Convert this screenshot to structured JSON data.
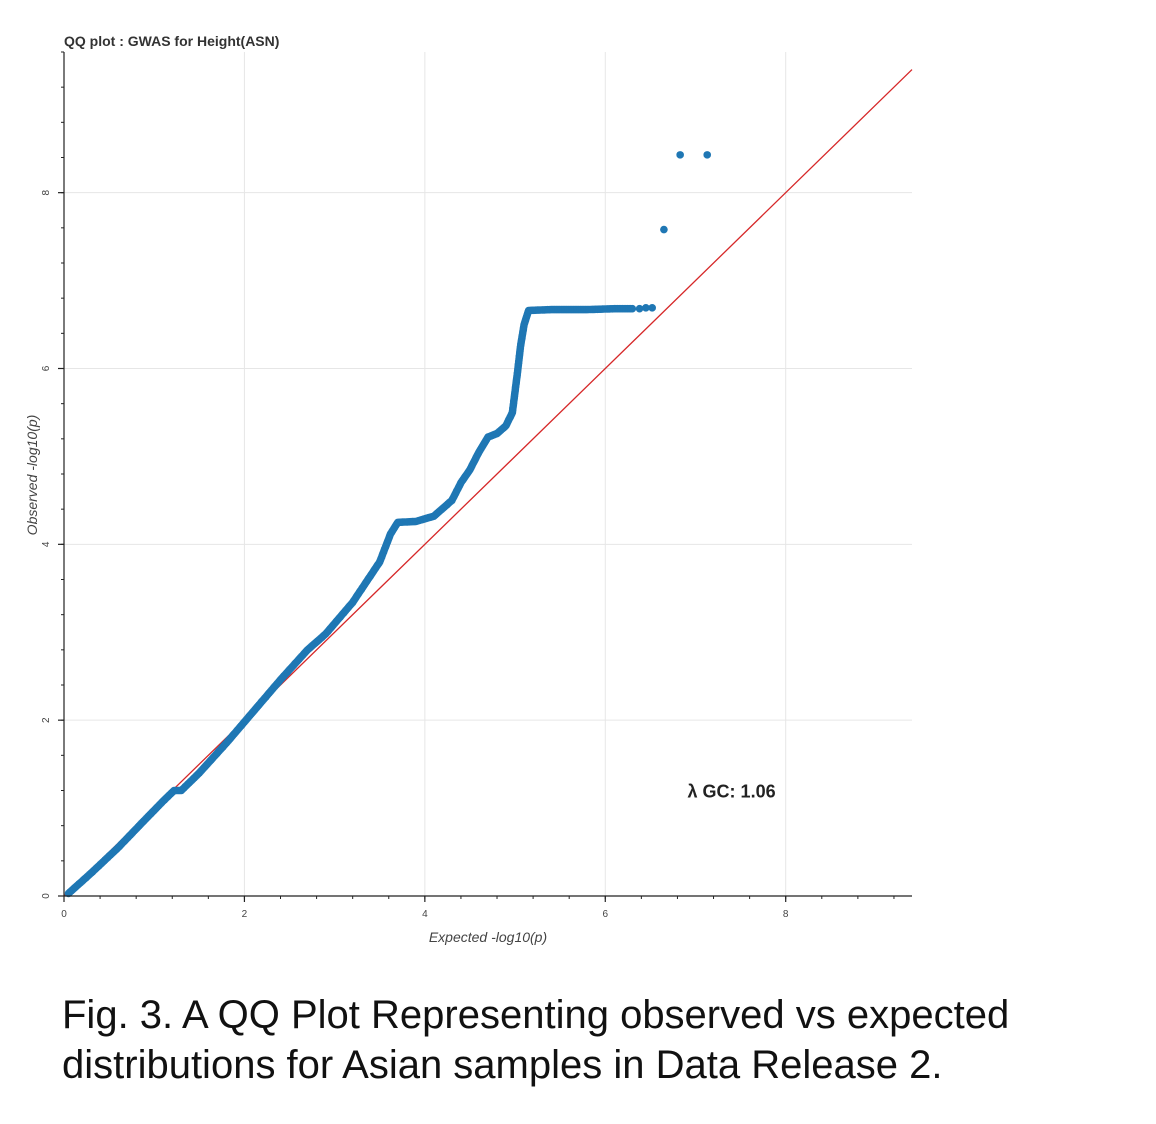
{
  "caption": "Fig. 3. A QQ Plot Representing observed vs expected distributions for Asian samples in Data Release 2.",
  "chart_data": {
    "type": "scatter",
    "title": "QQ plot : GWAS for Height(ASN)",
    "xlabel": "Expected -log10(p)",
    "ylabel": "Observed -log10(p)",
    "xlim": [
      0,
      9.4
    ],
    "ylim": [
      0,
      9.6
    ],
    "x_ticks": [
      0,
      2,
      4,
      6,
      8
    ],
    "y_ticks": [
      0,
      2,
      4,
      6,
      8
    ],
    "grid": true,
    "point_color": "#1f77b4",
    "reference_line": {
      "from": [
        0,
        0
      ],
      "to": [
        9.4,
        9.4
      ],
      "color": "#d62728"
    },
    "annotation": {
      "text": "λ GC: 1.06",
      "x": 7.4,
      "y": 1.12
    },
    "curve": [
      [
        0.05,
        0.03
      ],
      [
        0.3,
        0.26
      ],
      [
        0.6,
        0.55
      ],
      [
        0.9,
        0.87
      ],
      [
        1.1,
        1.08
      ],
      [
        1.22,
        1.2
      ],
      [
        1.3,
        1.2
      ],
      [
        1.5,
        1.4
      ],
      [
        1.8,
        1.74
      ],
      [
        2.1,
        2.1
      ],
      [
        2.4,
        2.46
      ],
      [
        2.7,
        2.8
      ],
      [
        2.9,
        2.98
      ],
      [
        3.2,
        3.34
      ],
      [
        3.5,
        3.8
      ],
      [
        3.62,
        4.12
      ],
      [
        3.7,
        4.25
      ],
      [
        3.9,
        4.26
      ],
      [
        4.1,
        4.32
      ],
      [
        4.3,
        4.5
      ],
      [
        4.4,
        4.7
      ],
      [
        4.5,
        4.85
      ],
      [
        4.6,
        5.05
      ],
      [
        4.7,
        5.22
      ],
      [
        4.8,
        5.26
      ],
      [
        4.9,
        5.35
      ],
      [
        4.97,
        5.5
      ],
      [
        5.02,
        5.9
      ],
      [
        5.06,
        6.25
      ],
      [
        5.1,
        6.5
      ],
      [
        5.15,
        6.66
      ],
      [
        5.4,
        6.67
      ],
      [
        5.8,
        6.67
      ],
      [
        6.1,
        6.68
      ],
      [
        6.3,
        6.68
      ]
    ],
    "points": [
      {
        "x": 6.38,
        "y": 6.68
      },
      {
        "x": 6.45,
        "y": 6.69
      },
      {
        "x": 6.52,
        "y": 6.69
      },
      {
        "x": 6.65,
        "y": 7.58
      },
      {
        "x": 6.83,
        "y": 8.43
      },
      {
        "x": 7.13,
        "y": 8.43
      }
    ]
  }
}
